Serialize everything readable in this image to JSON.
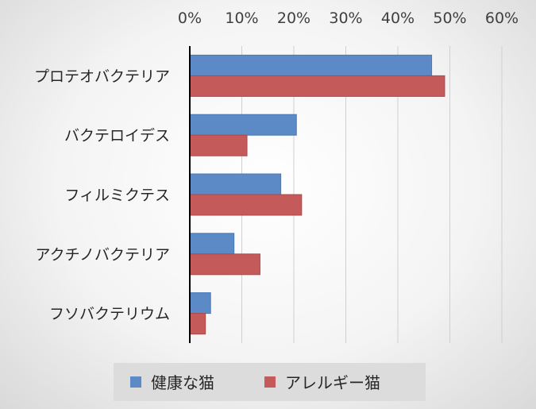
{
  "chart_data": {
    "type": "bar",
    "orientation": "horizontal",
    "categories": [
      "プロテオバクテリア",
      "バクテロイデス",
      "フィルミクテス",
      "アクチノバクテリア",
      "フソバクテリウム"
    ],
    "series": [
      {
        "name": "健康な猫",
        "values": [
          46.5,
          20.5,
          17.5,
          8.5,
          4.0
        ],
        "color": "#5b8ac6"
      },
      {
        "name": "アレルギー猫",
        "values": [
          49.0,
          11.0,
          21.5,
          13.5,
          3.0
        ],
        "color": "#c55a5a"
      }
    ],
    "xlim": [
      0,
      60
    ],
    "x_ticks": [
      0,
      10,
      20,
      30,
      40,
      50,
      60
    ],
    "tick_labels": [
      "0%",
      "10%",
      "20%",
      "30%",
      "40%",
      "50%",
      "60%"
    ],
    "x_axis_position": "top",
    "grid": true,
    "legend": "bottom"
  }
}
